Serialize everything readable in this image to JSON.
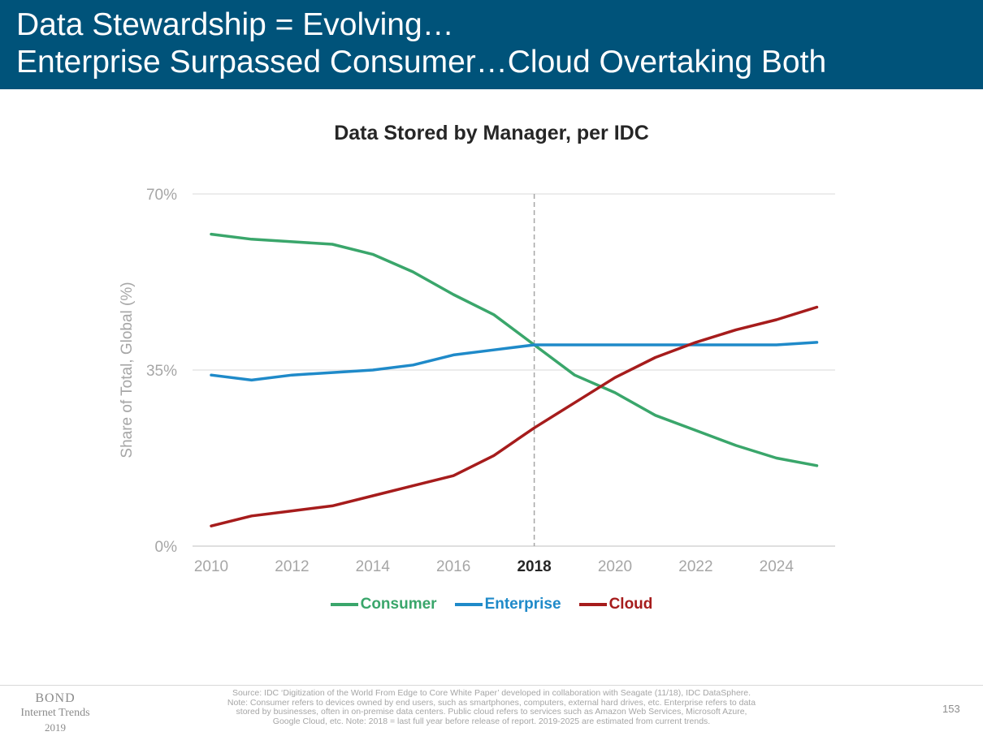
{
  "header": {
    "line1": "Data Stewardship = Evolving…",
    "line2": "Enterprise Surpassed Consumer…Cloud Overtaking Both"
  },
  "chart_data": {
    "type": "line",
    "title": "Data Stored by Manager, per IDC",
    "ylabel": "Share of Total, Global (%)",
    "xlabel": "",
    "x": [
      2010,
      2011,
      2012,
      2013,
      2014,
      2015,
      2016,
      2017,
      2018,
      2019,
      2020,
      2021,
      2022,
      2023,
      2024,
      2025
    ],
    "ylim": [
      0,
      70
    ],
    "yticks": [
      0,
      35,
      70
    ],
    "ytick_labels": [
      "0%",
      "35%",
      "70%"
    ],
    "xticks": [
      2010,
      2012,
      2014,
      2016,
      2018,
      2020,
      2022,
      2024
    ],
    "xtick_labels": [
      "2010",
      "2012",
      "2014",
      "2016",
      "2018",
      "2020",
      "2022",
      "2024"
    ],
    "highlight_x": 2018,
    "vertical_reference_line": 2018,
    "grid": "horizontal",
    "legend_position": "bottom",
    "series": [
      {
        "name": "Consumer",
        "color": "#3aa66b",
        "values": [
          62,
          61,
          60.5,
          60,
          58,
          54.5,
          50,
          46,
          40,
          34,
          30.5,
          26,
          23,
          20,
          17.5,
          16
        ]
      },
      {
        "name": "Enterprise",
        "color": "#1f8ac9",
        "values": [
          34,
          33,
          34,
          34.5,
          35,
          36,
          38,
          39,
          40,
          40,
          40,
          40,
          40,
          40,
          40,
          40.5
        ]
      },
      {
        "name": "Cloud",
        "color": "#a61c1c",
        "values": [
          4,
          6,
          7,
          8,
          10,
          12,
          14,
          18,
          23.5,
          28.5,
          33.5,
          37.5,
          40.5,
          43,
          45,
          47.5
        ]
      }
    ]
  },
  "footer": {
    "brand": "BOND",
    "brand_sub": "Internet Trends",
    "brand_year": "2019",
    "source_line1": "Source: IDC ‘Digitization of the World From Edge to Core White Paper’ developed in collaboration with Seagate (11/18), IDC DataSphere.",
    "source_line2": "Note: Consumer refers to devices owned by end users, such as smartphones, computers, external hard drives, etc. Enterprise refers to data",
    "source_line3": "stored by businesses, often in on-premise data centers.  Public cloud refers to services such as Amazon Web Services, Microsoft Azure,",
    "source_line4": "Google Cloud, etc. Note: 2018 = last full year before release of report.  2019-2025 are estimated from current trends.",
    "page_number": "153"
  }
}
